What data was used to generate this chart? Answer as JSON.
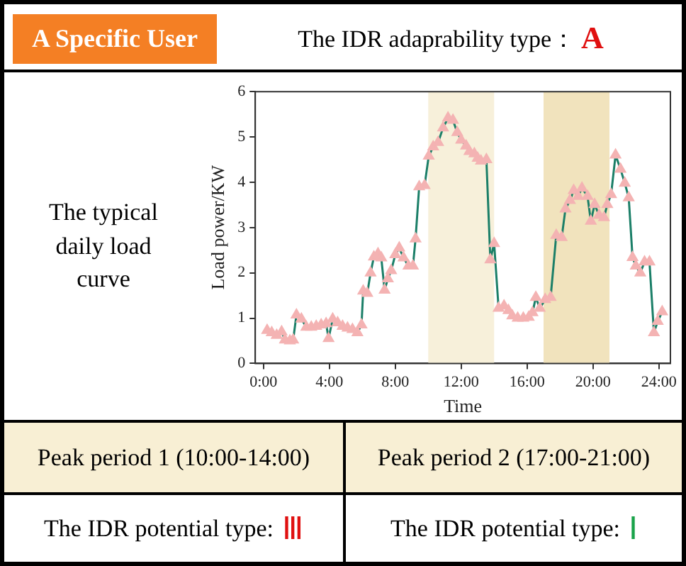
{
  "chart_data": {
    "type": "line",
    "xlabel": "Time",
    "ylabel": "Load power/KW",
    "annotations": [
      "A Specific User",
      "The IDR adaprability type：",
      "A",
      "The typical daily load curve",
      "Peak period 1 (10:00-14:00)",
      "Peak period 2 (17:00-21:00)",
      "The IDR potential type: ",
      "Ⅲ",
      "The IDR potential type: ",
      "Ⅰ"
    ],
    "x": [
      0.22,
      0.5,
      0.8,
      1.1,
      1.3,
      1.6,
      1.8,
      2.0,
      2.3,
      2.6,
      2.9,
      3.2,
      3.5,
      3.8,
      3.95,
      4.2,
      4.5,
      4.8,
      5.1,
      5.4,
      5.7,
      5.95,
      6.05,
      6.3,
      6.5,
      6.7,
      6.95,
      7.15,
      7.35,
      7.55,
      7.75,
      8.0,
      8.24,
      8.5,
      8.8,
      9.07,
      9.23,
      9.45,
      9.78,
      10.03,
      10.3,
      10.6,
      10.9,
      11.2,
      11.5,
      11.76,
      12.0,
      12.3,
      12.5,
      12.8,
      13.0,
      13.2,
      13.53,
      13.77,
      14.0,
      14.27,
      14.6,
      14.87,
      15.1,
      15.43,
      15.77,
      16.1,
      16.33,
      16.53,
      16.77,
      17.1,
      17.43,
      17.77,
      18.1,
      18.33,
      18.6,
      18.83,
      19.1,
      19.33,
      19.67,
      19.87,
      20.1,
      20.37,
      20.67,
      20.87,
      21.1,
      21.37,
      21.67,
      21.93,
      22.17,
      22.4,
      22.6,
      22.87,
      23.13,
      23.43,
      23.7,
      23.93,
      24.2
    ],
    "series": [
      {
        "color": "#1b7f68",
        "values": [
          0.73,
          0.68,
          0.62,
          0.7,
          0.52,
          0.5,
          0.52,
          1.07,
          0.98,
          0.8,
          0.8,
          0.82,
          0.85,
          0.88,
          0.55,
          0.98,
          0.9,
          0.82,
          0.78,
          0.75,
          0.68,
          0.85,
          1.6,
          1.55,
          2.0,
          2.35,
          2.42,
          2.33,
          1.62,
          1.87,
          2.05,
          2.4,
          2.55,
          2.33,
          2.15,
          2.15,
          2.75,
          3.9,
          3.93,
          4.58,
          4.78,
          4.88,
          5.2,
          5.42,
          5.37,
          5.1,
          4.93,
          4.8,
          4.68,
          4.63,
          4.53,
          4.47,
          4.5,
          2.29,
          2.65,
          1.22,
          1.27,
          1.17,
          1.05,
          1.0,
          1.0,
          1.02,
          1.12,
          1.46,
          1.22,
          1.41,
          1.46,
          2.83,
          2.78,
          3.41,
          3.6,
          3.82,
          3.69,
          3.87,
          3.69,
          3.14,
          3.51,
          3.27,
          3.22,
          3.51,
          3.73,
          4.6,
          4.29,
          3.98,
          3.66,
          2.34,
          2.15,
          2.0,
          2.24,
          2.24,
          0.68,
          0.93,
          1.14
        ]
      }
    ],
    "marker": "triangle",
    "line_style": "solid",
    "grid": false,
    "legend": false,
    "xlim": [
      -0.5,
      24.7
    ],
    "xticks": [
      {
        "value": 0,
        "label": "0:00"
      },
      {
        "value": 4,
        "label": "4:00"
      },
      {
        "value": 8,
        "label": "8:00"
      },
      {
        "value": 12,
        "label": "12:00"
      },
      {
        "value": 16,
        "label": "16:00"
      },
      {
        "value": 20,
        "label": "20:00"
      },
      {
        "value": 24,
        "label": "24:00"
      }
    ],
    "ylim": [
      0,
      6
    ],
    "yticks": [
      0,
      1,
      2,
      3,
      4,
      5,
      6
    ],
    "bands": [
      {
        "axis": "x",
        "from": 10,
        "to": 14,
        "color": "#f7f0da"
      },
      {
        "axis": "x",
        "from": 17,
        "to": 21,
        "color": "#f1e3bd"
      }
    ]
  }
}
